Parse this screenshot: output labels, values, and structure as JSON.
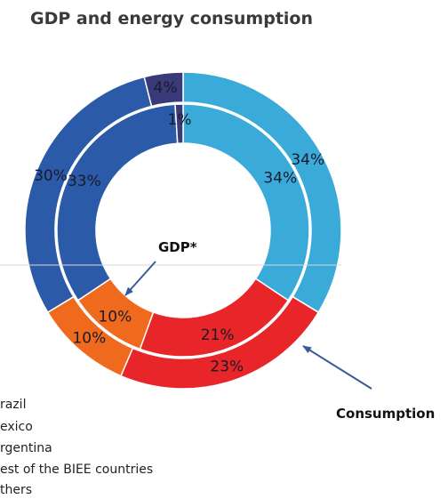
{
  "chart_data": {
    "type": "pie",
    "title": "GDP and energy consumption",
    "categories": [
      "Brazil",
      "Mexico",
      "Argentina",
      "Rest of the BIEE countries",
      "Others"
    ],
    "series": [
      {
        "name": "Consumption",
        "values": [
          34,
          23,
          10,
          30,
          4
        ]
      },
      {
        "name": "GDP*",
        "values": [
          34,
          21,
          10,
          33,
          1
        ]
      }
    ],
    "labels": {
      "outer": [
        "34%",
        "23%",
        "10%",
        "30%",
        "4%"
      ],
      "inner": [
        "34%",
        "21%",
        "10%",
        "33%",
        "1%"
      ]
    },
    "colors": [
      "#3aaad8",
      "#e8262a",
      "#f06a1e",
      "#2a5aa8",
      "#3a3a7a"
    ],
    "callouts": {
      "inner": "GDP*",
      "outer": "Consumption"
    },
    "legend": {
      "placement": "bottom-left",
      "entries": [
        "razil",
        "exico",
        "rgentina",
        "est of the BIEE countries",
        "thers"
      ]
    }
  }
}
